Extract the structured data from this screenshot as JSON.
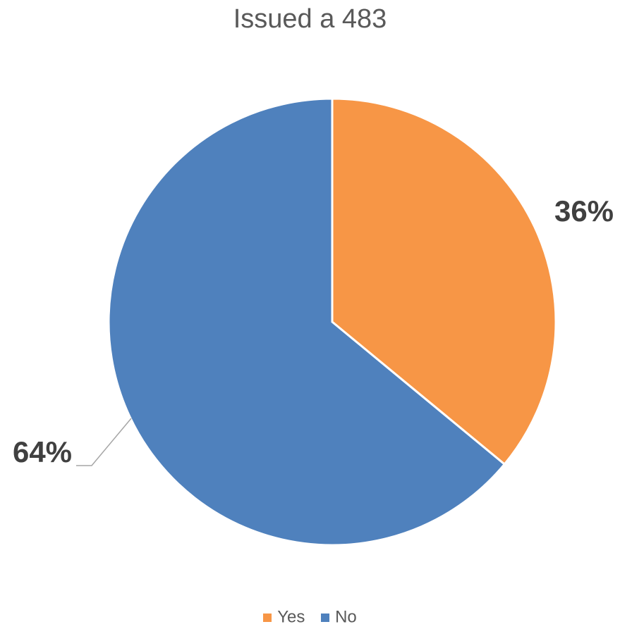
{
  "chart_data": {
    "type": "pie",
    "title": "Issued a 483",
    "categories": [
      "Yes",
      "No"
    ],
    "values": [
      36,
      64
    ],
    "value_labels": [
      "36%",
      "64%"
    ],
    "colors": [
      "#F79646",
      "#4F81BD"
    ],
    "legend_position": "bottom",
    "start_angle_deg": 0,
    "direction": "clockwise"
  },
  "legend": {
    "items": [
      {
        "label": "Yes",
        "color": "#F79646"
      },
      {
        "label": "No",
        "color": "#4F81BD"
      }
    ]
  }
}
